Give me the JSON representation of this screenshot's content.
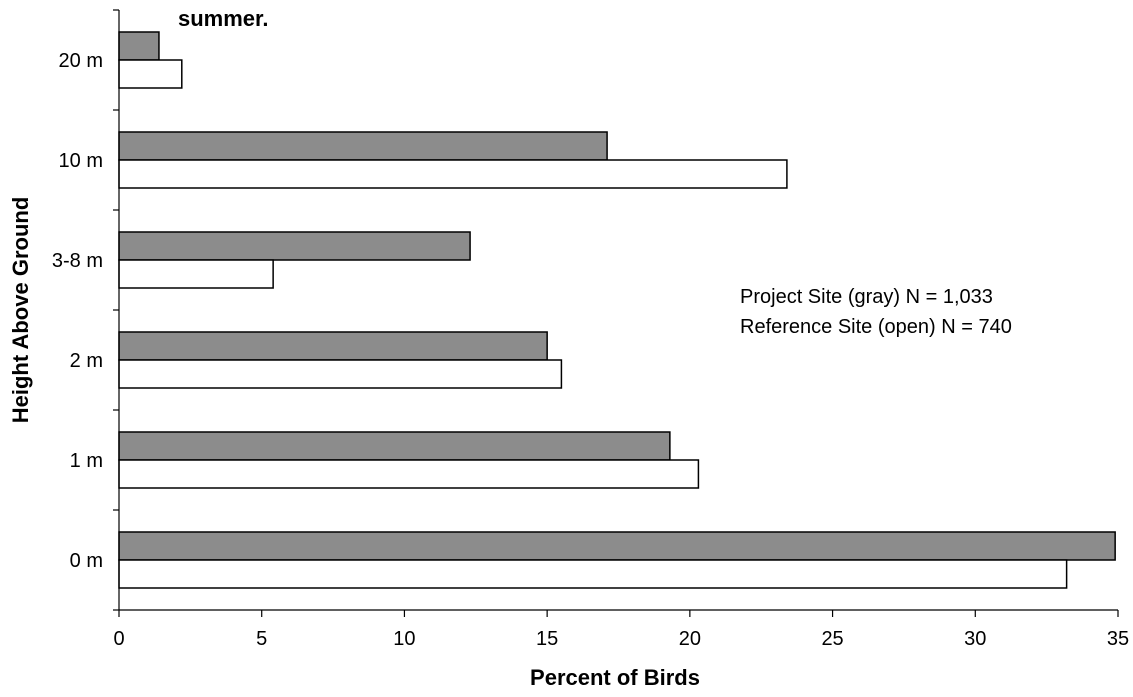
{
  "chart_data": {
    "type": "bar",
    "orientation": "horizontal",
    "title": "summer.",
    "xlabel": "Percent of Birds",
    "ylabel": "Height Above Ground",
    "xlim": [
      0,
      35
    ],
    "xticks": [
      "0",
      "5",
      "10",
      "15",
      "20",
      "25",
      "30",
      "35"
    ],
    "categories": [
      "20 m",
      "10 m",
      "3-8 m",
      "2 m",
      "1 m",
      "0 m"
    ],
    "series": [
      {
        "fill": "gray",
        "color": "#8c8c8c",
        "values": [
          1.4,
          17.1,
          12.3,
          15.0,
          19.3,
          34.9
        ]
      },
      {
        "fill": "open",
        "color": "#ffffff",
        "values": [
          2.2,
          23.4,
          5.4,
          15.5,
          20.3,
          33.2
        ]
      }
    ],
    "annotations": [
      "Project Site (gray) N = 1,033",
      "Reference Site (open) N = 740"
    ],
    "grid": false,
    "legend": "none"
  }
}
